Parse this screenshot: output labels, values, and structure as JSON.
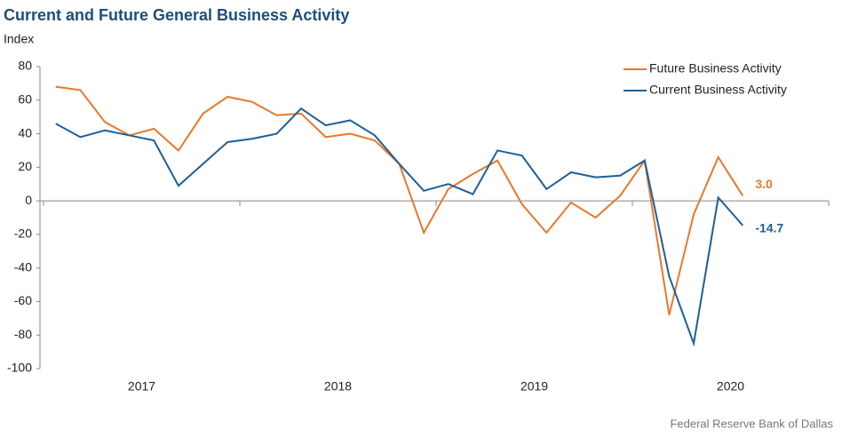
{
  "chart_data": {
    "type": "line",
    "title": "Current and Future General Business Activity",
    "y_label": "Index",
    "source": "Federal Reserve Bank of Dallas",
    "x": [
      2017.0625,
      2017.1875,
      2017.3125,
      2017.4375,
      2017.5625,
      2017.6875,
      2017.8125,
      2017.9375,
      2018.0625,
      2018.1875,
      2018.3125,
      2018.4375,
      2018.5625,
      2018.6875,
      2018.8125,
      2018.9375,
      2019.0625,
      2019.1875,
      2019.3125,
      2019.4375,
      2019.5625,
      2019.6875,
      2019.8125,
      2019.9375,
      2020.0625,
      2020.1875,
      2020.3125,
      2020.4375,
      2020.5625
    ],
    "xlim": [
      2017,
      2021
    ],
    "xticks": [
      {
        "value": 2017.5,
        "label": "2017"
      },
      {
        "value": 2018.5,
        "label": "2018"
      },
      {
        "value": 2019.5,
        "label": "2019"
      },
      {
        "value": 2020.5,
        "label": "2020"
      }
    ],
    "ylim": [
      -100,
      80
    ],
    "yticks": [
      -100,
      -80,
      -60,
      -40,
      -20,
      0,
      20,
      40,
      60,
      80
    ],
    "legend": "top-right",
    "series": [
      {
        "name": "Future Business Activity",
        "color": "#e8782a",
        "values": [
          68,
          66,
          47,
          39,
          43,
          30,
          52,
          62,
          59,
          51,
          52,
          38,
          40,
          36,
          22,
          -19,
          7,
          16,
          24,
          -2,
          -19,
          -1,
          -10,
          3,
          24,
          -68,
          -8,
          26,
          3.0
        ],
        "value_labels": [
          null,
          null,
          null,
          null,
          null,
          null,
          null,
          null,
          null,
          null,
          null,
          null,
          null,
          null,
          null,
          null,
          null,
          null,
          null,
          null,
          null,
          null,
          null,
          null,
          null,
          null,
          null,
          null,
          "3.0"
        ]
      },
      {
        "name": "Current Business Activity",
        "color": "#1d5f96",
        "values": [
          46,
          38,
          42,
          39,
          36,
          9,
          22,
          35,
          37,
          40,
          55,
          45,
          48,
          39,
          22,
          6,
          10,
          4,
          30,
          27,
          7,
          17,
          14,
          15,
          24,
          -45,
          -85,
          2,
          -14.7
        ],
        "value_labels": [
          null,
          null,
          null,
          null,
          null,
          null,
          null,
          null,
          null,
          null,
          null,
          null,
          null,
          null,
          null,
          null,
          null,
          null,
          null,
          null,
          null,
          null,
          null,
          null,
          null,
          null,
          null,
          null,
          "-14.7"
        ]
      }
    ]
  }
}
